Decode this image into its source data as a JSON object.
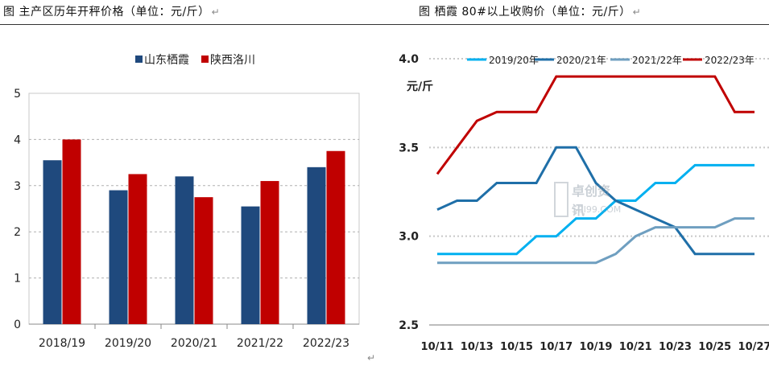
{
  "captions": {
    "left": "图  主产区历年开秤价格（单位：元/斤）",
    "right": "图  栖霞 80#以上收购价（单位：元/斤）",
    "mark": "↵"
  },
  "watermark": {
    "line1": "卓创资讯",
    "line2": "SCI99.COM"
  },
  "chart_data": [
    {
      "type": "bar",
      "title": "主产区历年开秤价格",
      "unit": "元/斤",
      "categories": [
        "2018/19",
        "2019/20",
        "2020/21",
        "2021/22",
        "2022/23"
      ],
      "series": [
        {
          "name": "山东栖霞",
          "color": "#1f497d",
          "values": [
            3.55,
            2.9,
            3.2,
            2.55,
            3.4
          ]
        },
        {
          "name": "陕西洛川",
          "color": "#c00000",
          "values": [
            4.0,
            3.25,
            2.75,
            3.1,
            3.75
          ]
        }
      ],
      "ylim": [
        0,
        5
      ],
      "yticks": [
        "0",
        "1",
        "2",
        "3",
        "4",
        "5"
      ],
      "grid": true,
      "legend": "top"
    },
    {
      "type": "line",
      "title": "栖霞 80#以上收购价",
      "ylabel": "元/斤",
      "x": [
        "10/11",
        "10/12",
        "10/13",
        "10/14",
        "10/15",
        "10/16",
        "10/17",
        "10/18",
        "10/19",
        "10/20",
        "10/21",
        "10/22",
        "10/23",
        "10/24",
        "10/25",
        "10/26",
        "10/27"
      ],
      "xticks": [
        "10/11",
        "10/13",
        "10/15",
        "10/17",
        "10/19",
        "10/21",
        "10/23",
        "10/25",
        "10/27"
      ],
      "series": [
        {
          "name": "2019/20年",
          "color": "#00b0f0",
          "values": [
            2.9,
            2.9,
            2.9,
            2.9,
            2.9,
            3.0,
            3.0,
            3.1,
            3.1,
            3.2,
            3.2,
            3.3,
            3.3,
            3.4,
            3.4,
            3.4,
            3.4
          ]
        },
        {
          "name": "2020/21年",
          "color": "#1f6fa8",
          "values": [
            3.15,
            3.2,
            3.2,
            3.3,
            3.3,
            3.3,
            3.5,
            3.5,
            3.3,
            3.2,
            3.15,
            3.1,
            3.05,
            2.9,
            2.9,
            2.9,
            2.9
          ]
        },
        {
          "name": "2021/22年",
          "color": "#6f9fc0",
          "values": [
            2.85,
            2.85,
            2.85,
            2.85,
            2.85,
            2.85,
            2.85,
            2.85,
            2.85,
            2.9,
            3.0,
            3.05,
            3.05,
            3.05,
            3.05,
            3.1,
            3.1
          ]
        },
        {
          "name": "2022/23年",
          "color": "#c00000",
          "values": [
            3.35,
            3.5,
            3.65,
            3.7,
            3.7,
            3.7,
            3.9,
            3.9,
            3.9,
            3.9,
            3.9,
            3.9,
            3.9,
            3.9,
            3.9,
            3.7,
            3.7
          ]
        }
      ],
      "ylim": [
        2.5,
        4.0
      ],
      "yticks": [
        "2.5",
        "3.0",
        "3.5",
        "4.0"
      ],
      "grid": true,
      "legend": "top"
    }
  ]
}
